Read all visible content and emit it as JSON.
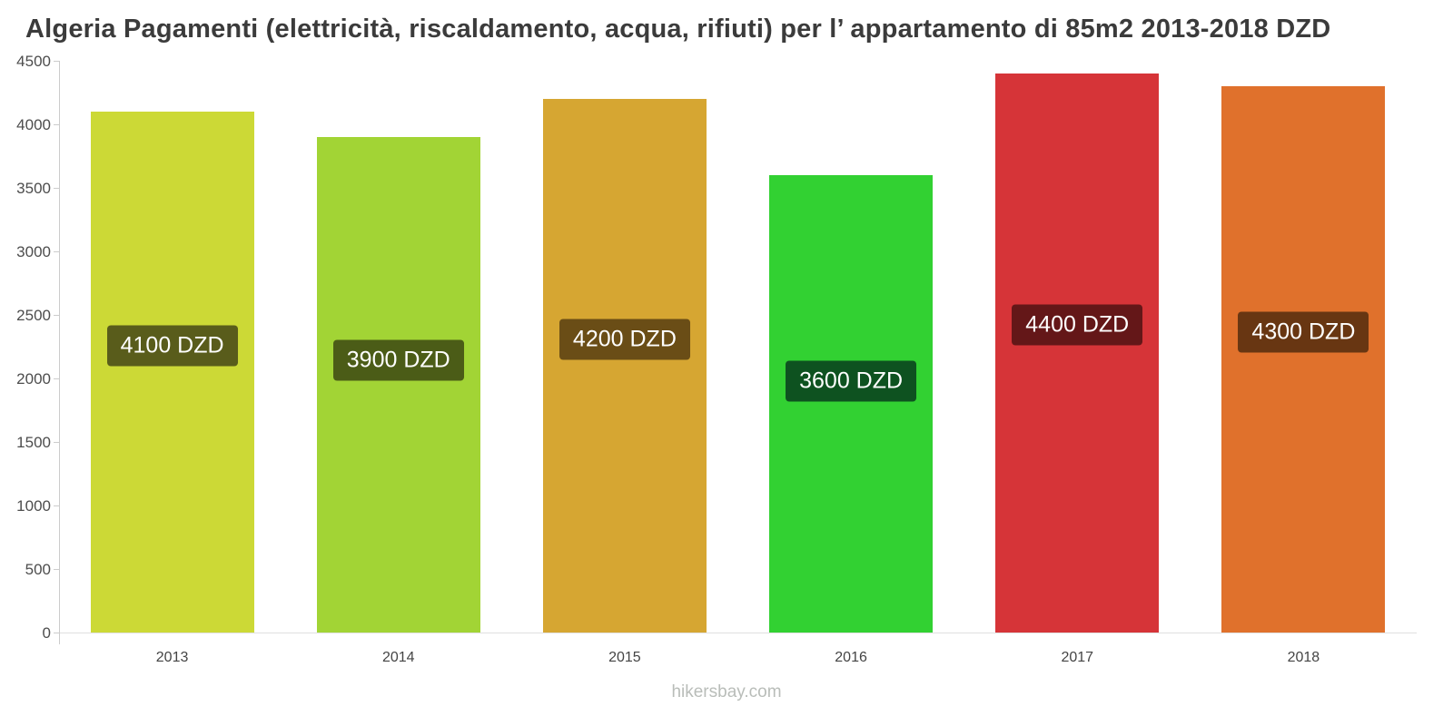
{
  "title": "Algeria Pagamenti (elettricità, riscaldamento, acqua, rifiuti) per l’ appartamento di 85m2 2013-2018 DZD",
  "footer": "hikersbay.com",
  "chart_data": {
    "type": "bar",
    "title": "Algeria Pagamenti (elettricità, riscaldamento, acqua, rifiuti) per l’ appartamento di 85m2 2013-2018 DZD",
    "categories": [
      "2013",
      "2014",
      "2015",
      "2016",
      "2017",
      "2018"
    ],
    "values": [
      4100,
      3900,
      4200,
      3600,
      4400,
      4300
    ],
    "bar_top_values": [
      4050,
      3920,
      4180,
      3610,
      4430,
      4300
    ],
    "value_labels": [
      "4100 DZD",
      "3900 DZD",
      "4200 DZD",
      "3600 DZD",
      "4400 DZD",
      "4300 DZD"
    ],
    "bar_colors": [
      "#ccd936",
      "#a2d435",
      "#d6a632",
      "#32d132",
      "#d63438",
      "#e0712c"
    ],
    "label_bg_colors": [
      "#595c1b",
      "#4b5c17",
      "#6a4d16",
      "#0e5220",
      "#641718",
      "#683612"
    ],
    "xlabel": "",
    "ylabel": "",
    "ylim": [
      0,
      4500
    ],
    "ytick_step": 500,
    "yticks": [
      0,
      500,
      1000,
      1500,
      2000,
      2500,
      3000,
      3500,
      4000,
      4500
    ],
    "grid": "off",
    "legend": "none",
    "currency": "DZD"
  }
}
